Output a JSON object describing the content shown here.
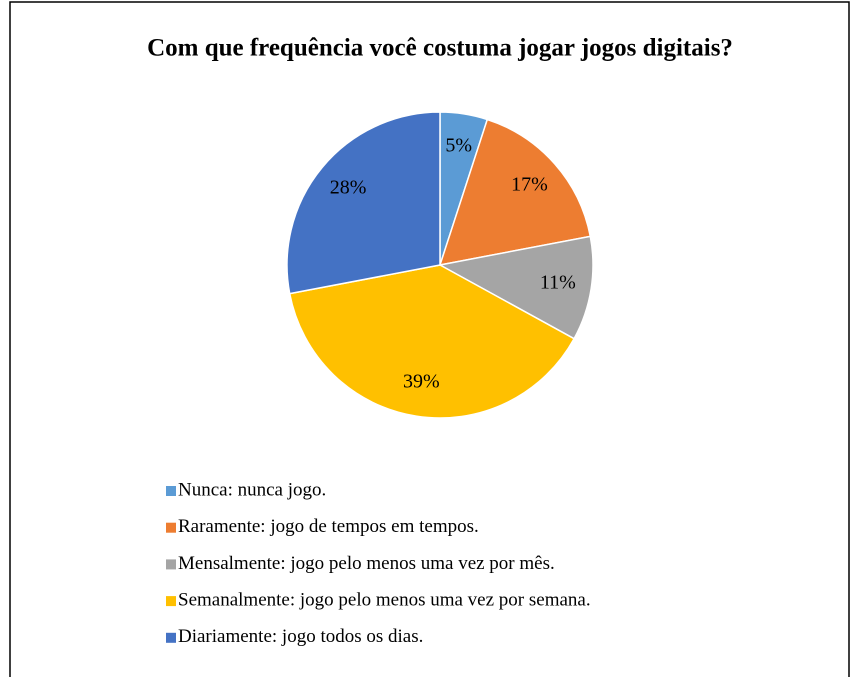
{
  "chart_data": {
    "type": "pie",
    "title": "Com que frequência você costuma jogar jogos digitais?",
    "categories": [
      "Nunca: nunca jogo.",
      "Raramente: jogo de tempos em tempos.",
      "Mensalmente: jogo pelo menos uma vez por mês.",
      "Semanalmente: jogo pelo menos uma vez por semana.",
      "Diariamente: jogo todos os dias."
    ],
    "values": [
      5,
      17,
      11,
      39,
      28
    ],
    "value_labels": [
      "5%",
      "17%",
      "11%",
      "39%",
      "28%"
    ],
    "colors": [
      "#5b9bd5",
      "#ed7d31",
      "#a5a5a5",
      "#ffc000",
      "#4472c4"
    ],
    "legend": "bottom"
  }
}
